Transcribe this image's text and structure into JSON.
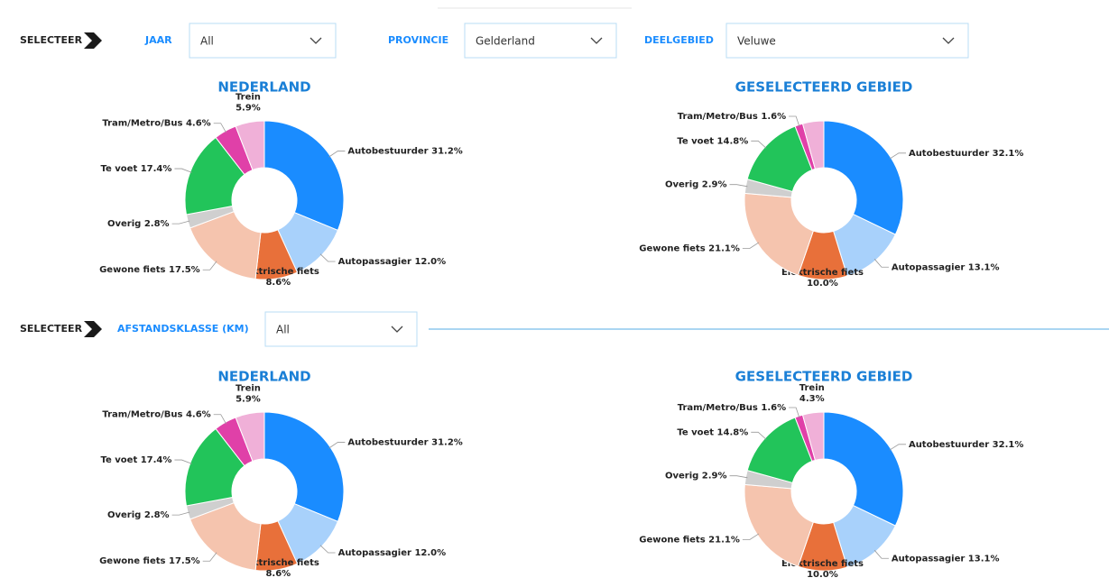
{
  "filters": [
    {
      "prefix": "SELECTEER",
      "items": [
        {
          "label": "JAAR",
          "value": "All"
        },
        {
          "label": "PROVINCIE",
          "value": "Gelderland"
        },
        {
          "label": "DEELGEBIED",
          "value": "Veluwe"
        }
      ]
    },
    {
      "prefix": "SELECTEER",
      "items": [
        {
          "label": "AFSTANDSKLASSE (KM)",
          "value": "All"
        }
      ]
    }
  ],
  "chart_data": [
    {
      "type": "pie",
      "title": "NEDERLAND",
      "categories": [
        "Autobestuurder",
        "Autopassagier",
        "Elektrische fiets",
        "Gewone fiets",
        "Overig",
        "Te voet",
        "Tram/Metro/Bus",
        "Trein"
      ],
      "values": [
        31.2,
        12.0,
        8.6,
        17.5,
        2.8,
        17.4,
        4.6,
        5.9
      ],
      "value_labels": [
        "31.2%",
        "12.0%",
        "8.6%",
        "17.5%",
        "2.8%",
        "17.4%",
        "4.6%",
        "5.9%"
      ],
      "colors": [
        "#1a8cff",
        "#a8d1fb",
        "#e8703a",
        "#f5c4ae",
        "#cfcfcf",
        "#22c45a",
        "#e040a8",
        "#f0b0d8"
      ]
    },
    {
      "type": "pie",
      "title": "GESELECTEERD GEBIED",
      "categories": [
        "Autobestuurder",
        "Autopassagier",
        "Elektrische fiets",
        "Gewone fiets",
        "Overig",
        "Te voet",
        "Tram/Metro/Bus",
        null
      ],
      "values": [
        32.1,
        13.1,
        10.0,
        21.1,
        2.9,
        14.8,
        1.6,
        4.3
      ],
      "value_labels": [
        "32.1%",
        "13.1%",
        "10.0%",
        "21.1%",
        "2.9%",
        "14.8%",
        "1.6%",
        null
      ],
      "colors": [
        "#1a8cff",
        "#a8d1fb",
        "#e8703a",
        "#f5c4ae",
        "#cfcfcf",
        "#22c45a",
        "#e040a8",
        "#f0b0d8"
      ]
    },
    {
      "type": "pie",
      "title": "NEDERLAND",
      "categories": [
        "Autobestuurder",
        "Autopassagier",
        "Elektrische fiets",
        "Gewone fiets",
        "Overig",
        "Te voet",
        "Tram/Metro/Bus",
        "Trein"
      ],
      "values": [
        31.2,
        12.0,
        8.6,
        17.5,
        2.8,
        17.4,
        4.6,
        5.9
      ],
      "value_labels": [
        "31.2%",
        "12.0%",
        "8.6%",
        "17.5%",
        "2.8%",
        "17.4%",
        "4.6%",
        "5.9%"
      ],
      "colors": [
        "#1a8cff",
        "#a8d1fb",
        "#e8703a",
        "#f5c4ae",
        "#cfcfcf",
        "#22c45a",
        "#e040a8",
        "#f0b0d8"
      ]
    },
    {
      "type": "pie",
      "title": "GESELECTEERD GEBIED",
      "categories": [
        "Autobestuurder",
        "Autopassagier",
        "Elektrische fiets",
        "Gewone fiets",
        "Overig",
        "Te voet",
        "Tram/Metro/Bus",
        "Trein"
      ],
      "values": [
        32.1,
        13.1,
        10.0,
        21.1,
        2.9,
        14.8,
        1.6,
        4.3
      ],
      "value_labels": [
        "32.1%",
        "13.1%",
        "10.0%",
        "21.1%",
        "2.9%",
        "14.8%",
        "1.6%",
        "4.3%"
      ],
      "colors": [
        "#1a8cff",
        "#a8d1fb",
        "#e8703a",
        "#f5c4ae",
        "#cfcfcf",
        "#22c45a",
        "#e040a8",
        "#f0b0d8"
      ]
    }
  ]
}
